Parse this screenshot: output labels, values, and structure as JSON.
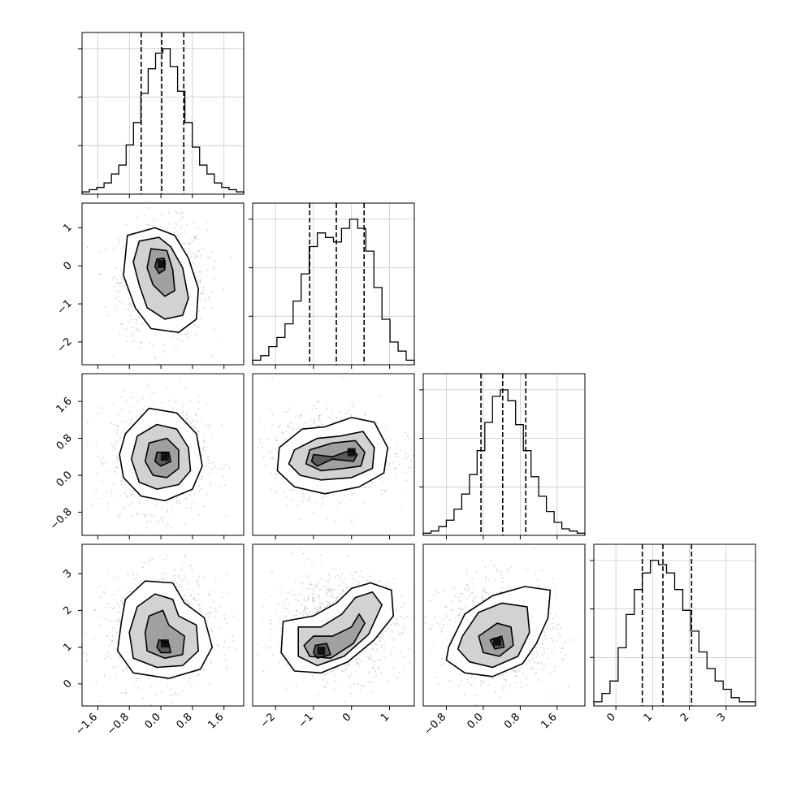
{
  "chart_data": {
    "type": "corner",
    "n_params": 4,
    "grid": true,
    "axes": [
      {
        "range": [
          -2.0,
          2.1
        ],
        "ticks": [
          -1.6,
          -0.8,
          0.0,
          0.8,
          1.6
        ],
        "tick_labels": [
          "−1.6",
          "−0.8",
          "0.0",
          "0.8",
          "1.6"
        ]
      },
      {
        "range": [
          -2.6,
          1.65
        ],
        "ticks": [
          -2,
          -1,
          0,
          1
        ],
        "tick_labels": [
          "−2",
          "−1",
          "0",
          "1"
        ]
      },
      {
        "range": [
          -1.3,
          2.2
        ],
        "ticks": [
          -0.8,
          0.0,
          0.8,
          1.6
        ],
        "tick_labels": [
          "−0.8",
          "0.0",
          "0.8",
          "1.6"
        ]
      },
      {
        "range": [
          -0.6,
          3.8
        ],
        "ticks": [
          0,
          1,
          2,
          3
        ],
        "tick_labels": [
          "0",
          "1",
          "2",
          "3"
        ]
      }
    ],
    "histograms": [
      {
        "param": 0,
        "quantiles": [
          -0.5,
          0.02,
          0.58
        ],
        "counts": [
          1,
          2,
          3,
          5,
          9,
          13,
          22,
          32,
          45,
          56,
          63,
          65,
          57,
          46,
          32,
          21,
          13,
          9,
          5,
          3,
          2,
          1
        ]
      },
      {
        "param": 1,
        "quantiles": [
          -1.1,
          -0.4,
          0.33
        ],
        "counts": [
          1,
          2,
          4,
          6,
          9,
          14,
          20,
          26,
          29,
          28,
          27,
          30,
          32,
          30,
          25,
          17,
          10,
          5,
          3,
          1
        ]
      },
      {
        "param": 2,
        "quantiles": [
          -0.05,
          0.42,
          0.92
        ],
        "counts": [
          1,
          2,
          4,
          7,
          12,
          19,
          28,
          39,
          52,
          64,
          67,
          62,
          51,
          39,
          27,
          18,
          11,
          6,
          3,
          2,
          1
        ]
      },
      {
        "param": 3,
        "quantiles": [
          0.72,
          1.28,
          2.06
        ],
        "counts": [
          1,
          3,
          6,
          14,
          22,
          28,
          32,
          35,
          34,
          32,
          28,
          23,
          18,
          13,
          9,
          6,
          4,
          2,
          1,
          1
        ]
      }
    ],
    "pair_contours": [
      {
        "row": 1,
        "col": 0,
        "peak": [
          0.02,
          0.05
        ],
        "levels": [
          [
            [
              -0.85,
              0.8
            ],
            [
              -0.15,
              1.0
            ],
            [
              0.35,
              0.8
            ],
            [
              0.7,
              0.2
            ],
            [
              0.95,
              -0.6
            ],
            [
              0.9,
              -1.4
            ],
            [
              0.45,
              -1.75
            ],
            [
              -0.25,
              -1.65
            ],
            [
              -0.65,
              -1.1
            ],
            [
              -0.95,
              -0.25
            ]
          ],
          [
            [
              -0.55,
              0.65
            ],
            [
              -0.05,
              0.75
            ],
            [
              0.25,
              0.5
            ],
            [
              0.55,
              -0.05
            ],
            [
              0.7,
              -0.85
            ],
            [
              0.55,
              -1.3
            ],
            [
              0.1,
              -1.4
            ],
            [
              -0.35,
              -1.1
            ],
            [
              -0.55,
              -0.5
            ],
            [
              -0.7,
              0.1
            ]
          ],
          [
            [
              -0.25,
              0.45
            ],
            [
              0.15,
              0.4
            ],
            [
              0.3,
              -0.1
            ],
            [
              0.35,
              -0.65
            ],
            [
              0.1,
              -0.8
            ],
            [
              -0.2,
              -0.5
            ],
            [
              -0.35,
              -0.05
            ]
          ],
          [
            [
              -0.1,
              0.18
            ],
            [
              0.08,
              0.2
            ],
            [
              0.1,
              -0.1
            ],
            [
              -0.05,
              -0.2
            ],
            [
              -0.15,
              -0.02
            ]
          ]
        ]
      },
      {
        "row": 2,
        "col": 0,
        "peak": [
          0.1,
          0.4
        ],
        "levels": [
          [
            [
              -0.9,
              0.9
            ],
            [
              -0.3,
              1.45
            ],
            [
              0.4,
              1.35
            ],
            [
              0.9,
              0.9
            ],
            [
              1.05,
              0.2
            ],
            [
              0.8,
              -0.3
            ],
            [
              0.1,
              -0.55
            ],
            [
              -0.5,
              -0.45
            ],
            [
              -0.95,
              -0.05
            ],
            [
              -1.05,
              0.45
            ]
          ],
          [
            [
              -0.6,
              0.85
            ],
            [
              -0.1,
              1.1
            ],
            [
              0.4,
              1.0
            ],
            [
              0.7,
              0.6
            ],
            [
              0.75,
              0.1
            ],
            [
              0.45,
              -0.2
            ],
            [
              -0.1,
              -0.3
            ],
            [
              -0.55,
              -0.15
            ],
            [
              -0.75,
              0.35
            ]
          ],
          [
            [
              -0.3,
              0.7
            ],
            [
              0.15,
              0.8
            ],
            [
              0.45,
              0.55
            ],
            [
              0.45,
              0.15
            ],
            [
              0.15,
              -0.05
            ],
            [
              -0.2,
              0.0
            ],
            [
              -0.4,
              0.3
            ]
          ],
          [
            [
              -0.1,
              0.5
            ],
            [
              0.2,
              0.5
            ],
            [
              0.25,
              0.3
            ],
            [
              0.0,
              0.2
            ],
            [
              -0.15,
              0.3
            ]
          ]
        ]
      },
      {
        "row": 2,
        "col": 1,
        "peak": [
          0.0,
          0.5
        ],
        "levels": [
          [
            [
              -1.9,
              0.6
            ],
            [
              -1.3,
              1.0
            ],
            [
              -0.7,
              1.05
            ],
            [
              0.0,
              1.25
            ],
            [
              0.6,
              1.15
            ],
            [
              0.95,
              0.6
            ],
            [
              0.85,
              0.05
            ],
            [
              0.2,
              -0.25
            ],
            [
              -0.7,
              -0.4
            ],
            [
              -1.5,
              -0.25
            ],
            [
              -1.95,
              0.1
            ]
          ],
          [
            [
              -1.5,
              0.55
            ],
            [
              -0.9,
              0.8
            ],
            [
              -0.3,
              0.85
            ],
            [
              0.3,
              0.95
            ],
            [
              0.6,
              0.6
            ],
            [
              0.55,
              0.15
            ],
            [
              0.0,
              -0.05
            ],
            [
              -0.8,
              -0.1
            ],
            [
              -1.35,
              0.0
            ],
            [
              -1.65,
              0.25
            ]
          ],
          [
            [
              -1.1,
              0.55
            ],
            [
              -0.5,
              0.7
            ],
            [
              0.1,
              0.75
            ],
            [
              0.35,
              0.5
            ],
            [
              0.25,
              0.2
            ],
            [
              -0.2,
              0.15
            ],
            [
              -0.8,
              0.1
            ],
            [
              -1.2,
              0.25
            ]
          ],
          [
            [
              -1.0,
              0.45
            ],
            [
              -0.5,
              0.4
            ],
            [
              0.0,
              0.55
            ],
            [
              0.15,
              0.45
            ],
            [
              0.05,
              0.3
            ],
            [
              -0.5,
              0.35
            ],
            [
              -0.9,
              0.2
            ],
            [
              -1.05,
              0.3
            ]
          ]
        ]
      },
      {
        "row": 3,
        "col": 0,
        "peak": [
          0.1,
          1.1
        ],
        "levels": [
          [
            [
              -0.9,
              2.3
            ],
            [
              -0.4,
              2.8
            ],
            [
              0.3,
              2.75
            ],
            [
              0.6,
              2.2
            ],
            [
              1.1,
              1.8
            ],
            [
              1.3,
              1.0
            ],
            [
              1.0,
              0.4
            ],
            [
              0.2,
              0.15
            ],
            [
              -0.7,
              0.3
            ],
            [
              -1.1,
              0.9
            ],
            [
              -1.0,
              1.7
            ]
          ],
          [
            [
              -0.6,
              2.1
            ],
            [
              -0.15,
              2.45
            ],
            [
              0.3,
              2.3
            ],
            [
              0.45,
              1.85
            ],
            [
              0.9,
              1.6
            ],
            [
              0.95,
              0.9
            ],
            [
              0.55,
              0.5
            ],
            [
              -0.1,
              0.45
            ],
            [
              -0.7,
              0.7
            ],
            [
              -0.8,
              1.4
            ]
          ],
          [
            [
              -0.3,
              1.85
            ],
            [
              0.05,
              2.0
            ],
            [
              0.2,
              1.6
            ],
            [
              0.6,
              1.3
            ],
            [
              0.55,
              0.8
            ],
            [
              0.1,
              0.7
            ],
            [
              -0.35,
              0.9
            ],
            [
              -0.4,
              1.4
            ]
          ],
          [
            [
              -0.05,
              1.2
            ],
            [
              0.2,
              1.1
            ],
            [
              0.25,
              0.85
            ],
            [
              0.0,
              0.85
            ],
            [
              -0.1,
              1.0
            ]
          ]
        ]
      },
      {
        "row": 3,
        "col": 1,
        "peak": [
          -0.8,
          0.9
        ],
        "levels": [
          [
            [
              -1.8,
              1.7
            ],
            [
              -1.0,
              1.85
            ],
            [
              -0.4,
              2.2
            ],
            [
              0.0,
              2.6
            ],
            [
              0.5,
              2.75
            ],
            [
              1.05,
              2.55
            ],
            [
              1.1,
              1.85
            ],
            [
              0.6,
              1.2
            ],
            [
              -0.1,
              0.6
            ],
            [
              -0.8,
              0.3
            ],
            [
              -1.5,
              0.35
            ],
            [
              -1.85,
              0.85
            ]
          ],
          [
            [
              -1.4,
              1.55
            ],
            [
              -0.8,
              1.55
            ],
            [
              -0.25,
              1.9
            ],
            [
              0.1,
              2.35
            ],
            [
              0.55,
              2.5
            ],
            [
              0.8,
              2.15
            ],
            [
              0.45,
              1.35
            ],
            [
              -0.2,
              0.75
            ],
            [
              -0.9,
              0.5
            ],
            [
              -1.4,
              0.75
            ]
          ],
          [
            [
              -1.0,
              1.3
            ],
            [
              -0.5,
              1.3
            ],
            [
              0.0,
              1.55
            ],
            [
              0.2,
              1.9
            ],
            [
              0.35,
              1.65
            ],
            [
              0.05,
              1.1
            ],
            [
              -0.55,
              0.7
            ],
            [
              -1.1,
              0.75
            ],
            [
              -1.25,
              1.05
            ]
          ],
          [
            [
              -0.95,
              1.05
            ],
            [
              -0.65,
              1.1
            ],
            [
              -0.55,
              0.8
            ],
            [
              -0.9,
              0.7
            ],
            [
              -1.0,
              0.85
            ]
          ]
        ]
      },
      {
        "row": 3,
        "col": 2,
        "peak": [
          0.3,
          1.15
        ],
        "levels": [
          [
            [
              -0.75,
              1.0
            ],
            [
              -0.4,
              1.9
            ],
            [
              0.2,
              2.4
            ],
            [
              0.9,
              2.65
            ],
            [
              1.45,
              2.55
            ],
            [
              1.4,
              1.8
            ],
            [
              1.15,
              1.1
            ],
            [
              0.85,
              0.55
            ],
            [
              0.2,
              0.2
            ],
            [
              -0.4,
              0.3
            ],
            [
              -0.8,
              0.65
            ]
          ],
          [
            [
              -0.45,
              1.3
            ],
            [
              -0.1,
              1.95
            ],
            [
              0.4,
              2.2
            ],
            [
              0.95,
              2.1
            ],
            [
              1.0,
              1.4
            ],
            [
              0.75,
              0.75
            ],
            [
              0.2,
              0.45
            ],
            [
              -0.3,
              0.6
            ],
            [
              -0.55,
              0.95
            ]
          ],
          [
            [
              -0.1,
              1.3
            ],
            [
              0.3,
              1.65
            ],
            [
              0.6,
              1.55
            ],
            [
              0.65,
              1.05
            ],
            [
              0.35,
              0.75
            ],
            [
              0.0,
              0.85
            ]
          ],
          [
            [
              0.15,
              1.2
            ],
            [
              0.4,
              1.3
            ],
            [
              0.45,
              1.0
            ],
            [
              0.25,
              0.95
            ]
          ]
        ]
      }
    ]
  }
}
